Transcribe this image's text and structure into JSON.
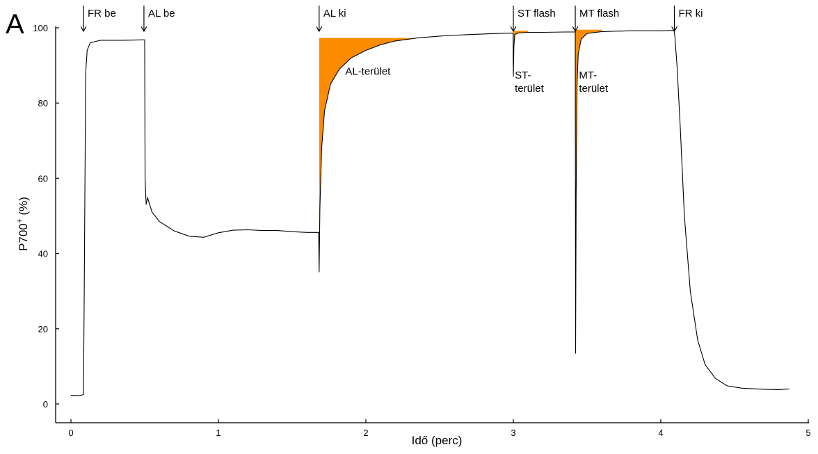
{
  "chart_data": {
    "type": "line",
    "panel_label": "A",
    "xlabel": "Idő (perc)",
    "ylabel_main": "P700",
    "ylabel_sup": "+",
    "ylabel_unit": " (%)",
    "xlim": [
      0,
      5
    ],
    "ylim": [
      -5,
      100
    ],
    "xticks": [
      0,
      1,
      2,
      3,
      4,
      5
    ],
    "yticks": [
      0,
      20,
      40,
      60,
      80,
      100
    ],
    "grid": false,
    "line_color": "#000000",
    "fill_color": "#ff8c00",
    "series": [
      {
        "points": [
          [
            0.0,
            2.3
          ],
          [
            0.06,
            2.2
          ],
          [
            0.085,
            2.5
          ],
          [
            0.09,
            30
          ],
          [
            0.1,
            88
          ],
          [
            0.11,
            94
          ],
          [
            0.13,
            96
          ],
          [
            0.2,
            96.7
          ],
          [
            0.35,
            96.7
          ],
          [
            0.49,
            96.8
          ],
          [
            0.5,
            96.8
          ],
          [
            0.503,
            60
          ],
          [
            0.51,
            53
          ],
          [
            0.52,
            54.8
          ],
          [
            0.53,
            53.5
          ],
          [
            0.55,
            51
          ],
          [
            0.6,
            48.5
          ],
          [
            0.7,
            46
          ],
          [
            0.8,
            44.6
          ],
          [
            0.9,
            44.3
          ],
          [
            1.0,
            45.5
          ],
          [
            1.1,
            46.2
          ],
          [
            1.2,
            46.3
          ],
          [
            1.3,
            46.1
          ],
          [
            1.4,
            46.1
          ],
          [
            1.5,
            45.8
          ],
          [
            1.6,
            45.6
          ],
          [
            1.68,
            45.6
          ],
          [
            1.683,
            35
          ],
          [
            1.688,
            52
          ],
          [
            1.7,
            68
          ],
          [
            1.72,
            78
          ],
          [
            1.76,
            85
          ],
          [
            1.82,
            89
          ],
          [
            1.9,
            92
          ],
          [
            2.0,
            94
          ],
          [
            2.1,
            95.5
          ],
          [
            2.2,
            96.5
          ],
          [
            2.35,
            97.3
          ],
          [
            2.5,
            97.8
          ],
          [
            2.7,
            98.2
          ],
          [
            2.9,
            98.5
          ],
          [
            2.998,
            98.6
          ],
          [
            3.0,
            87
          ],
          [
            3.004,
            95
          ],
          [
            3.01,
            98.2
          ],
          [
            3.03,
            98.6
          ],
          [
            3.1,
            98.8
          ],
          [
            3.2,
            98.8
          ],
          [
            3.35,
            98.9
          ],
          [
            3.42,
            98.9
          ],
          [
            3.422,
            13.4
          ],
          [
            3.426,
            55
          ],
          [
            3.432,
            85
          ],
          [
            3.44,
            93
          ],
          [
            3.46,
            97
          ],
          [
            3.5,
            98.5
          ],
          [
            3.6,
            99
          ],
          [
            3.8,
            99.2
          ],
          [
            4.0,
            99.2
          ],
          [
            4.09,
            99.3
          ],
          [
            4.095,
            98
          ],
          [
            4.11,
            90
          ],
          [
            4.13,
            75
          ],
          [
            4.16,
            50
          ],
          [
            4.2,
            30
          ],
          [
            4.25,
            17
          ],
          [
            4.3,
            10.5
          ],
          [
            4.37,
            6.8
          ],
          [
            4.45,
            4.8
          ],
          [
            4.55,
            4.2
          ],
          [
            4.7,
            3.9
          ],
          [
            4.8,
            3.8
          ],
          [
            4.87,
            4.0
          ]
        ]
      }
    ],
    "shaded_regions": [
      {
        "label_lines": [
          "AL-terület"
        ],
        "label_pos": [
          1.86,
          87.5
        ],
        "points": [
          [
            1.683,
            35
          ],
          [
            1.688,
            52
          ],
          [
            1.7,
            68
          ],
          [
            1.72,
            78
          ],
          [
            1.76,
            85
          ],
          [
            1.82,
            89
          ],
          [
            1.9,
            92
          ],
          [
            2.0,
            94
          ],
          [
            2.1,
            95.5
          ],
          [
            2.2,
            96.5
          ],
          [
            2.33,
            97.3
          ],
          [
            1.683,
            97.3
          ]
        ]
      },
      {
        "label_lines": [
          "ST-",
          "terület"
        ],
        "label_pos": [
          3.01,
          86.5
        ],
        "points": [
          [
            3.0,
            87
          ],
          [
            3.004,
            95
          ],
          [
            3.01,
            98.2
          ],
          [
            3.03,
            98.6
          ],
          [
            3.1,
            98.8
          ],
          [
            3.1,
            99.2
          ],
          [
            3.0,
            99.2
          ]
        ]
      },
      {
        "label_lines": [
          "MT-",
          "terület"
        ],
        "label_pos": [
          3.445,
          86.5
        ],
        "points": [
          [
            3.422,
            13.4
          ],
          [
            3.426,
            55
          ],
          [
            3.432,
            85
          ],
          [
            3.44,
            93
          ],
          [
            3.46,
            97
          ],
          [
            3.5,
            98.5
          ],
          [
            3.6,
            99
          ],
          [
            3.6,
            99.5
          ],
          [
            3.422,
            99.5
          ]
        ]
      }
    ],
    "annotations": [
      {
        "label": "FR be",
        "x": 0.085
      },
      {
        "label": "AL be",
        "x": 0.495
      },
      {
        "label": "AL ki",
        "x": 1.683
      },
      {
        "label": "ST flash",
        "x": 3.0
      },
      {
        "label": "MT flash",
        "x": 3.42
      },
      {
        "label": "FR ki",
        "x": 4.092
      }
    ]
  }
}
